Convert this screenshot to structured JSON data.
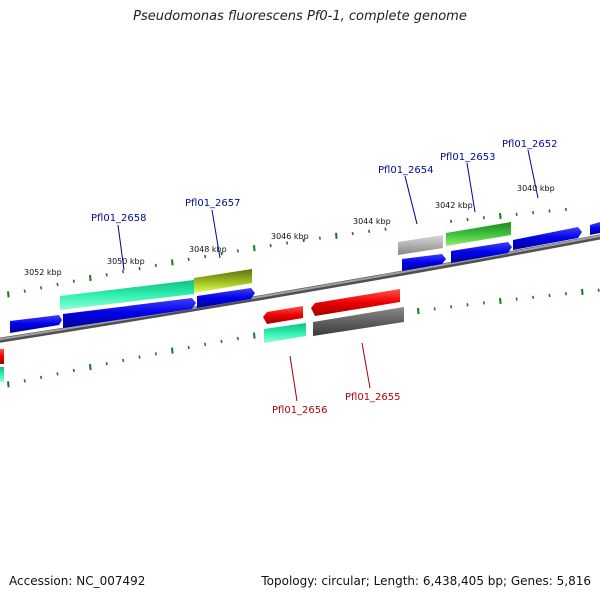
{
  "title": "Pseudomonas fluorescens Pf0-1, complete genome",
  "footer": {
    "accession": "Accession: NC_007492",
    "summary": "Topology: circular; Length: 6,438,405 bp; Genes: 5,816"
  },
  "kbp_labels": [
    "3052 kbp",
    "3050 kbp",
    "3048 kbp",
    "3046 kbp",
    "3044 kbp",
    "3042 kbp",
    "3040 kbp"
  ],
  "gene_labels": {
    "forward": [
      "Pfl01_2658",
      "Pfl01_2657",
      "Pfl01_2654",
      "Pfl01_2653",
      "Pfl01_2652"
    ],
    "reverse": [
      "Pfl01_2656",
      "Pfl01_2655"
    ]
  },
  "colors": {
    "backbone": "#808080",
    "tick": "#1a7a1a",
    "cds_blue": "#0000ee",
    "gene_cyan": "#22e8a0",
    "gene_olive": "#6b8a10",
    "gene_green": "#2aa82a",
    "gene_gray": "#b8b8b8",
    "gene_red": "#ee0000",
    "gene_darkgray": "#606060",
    "label_blue": "#000a96",
    "label_red": "#b4000a"
  }
}
